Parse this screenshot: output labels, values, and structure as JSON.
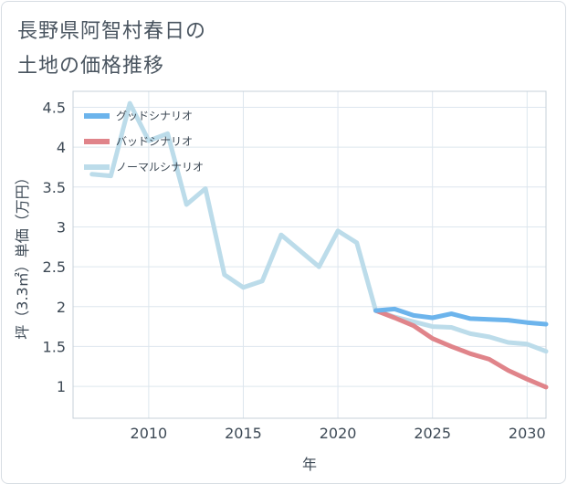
{
  "title_line1": "長野県阿智村春日の",
  "title_line2": "土地の価格推移",
  "chart_data": {
    "type": "line",
    "xlabel": "年",
    "ylabel": "坪（3.3㎡）単価（万円）",
    "xlim": [
      2006,
      2031
    ],
    "ylim": [
      0.6,
      4.7
    ],
    "xticks": [
      2010,
      2015,
      2020,
      2025,
      2030
    ],
    "yticks": [
      1,
      1.5,
      2,
      2.5,
      3,
      3.5,
      4,
      4.5
    ],
    "ytick_labels": [
      "1",
      "1.5",
      "2",
      "2.5",
      "3",
      "3.5",
      "4",
      "4.5"
    ],
    "grid": true,
    "legend_position": "top-left",
    "series": [
      {
        "name": "グッドシナリオ",
        "color": "#6cb4ec",
        "x": [
          2022,
          2023,
          2024,
          2025,
          2026,
          2027,
          2028,
          2029,
          2030,
          2031
        ],
        "y": [
          1.95,
          1.97,
          1.89,
          1.86,
          1.91,
          1.85,
          1.84,
          1.83,
          1.8,
          1.78
        ]
      },
      {
        "name": "バッドシナリオ",
        "color": "#e0848a",
        "x": [
          2022,
          2023,
          2024,
          2025,
          2026,
          2027,
          2028,
          2029,
          2030,
          2031
        ],
        "y": [
          1.95,
          1.86,
          1.76,
          1.6,
          1.5,
          1.41,
          1.34,
          1.2,
          1.09,
          0.99
        ]
      },
      {
        "name": "ノーマルシナリオ",
        "color": "#bcdcea",
        "x": [
          2007,
          2008,
          2009,
          2010,
          2011,
          2012,
          2013,
          2014,
          2015,
          2016,
          2017,
          2018,
          2019,
          2020,
          2021,
          2022,
          2023,
          2024,
          2025,
          2026,
          2027,
          2028,
          2029,
          2030,
          2031
        ],
        "y": [
          3.66,
          3.64,
          4.55,
          4.08,
          4.17,
          3.28,
          3.48,
          2.4,
          2.24,
          2.32,
          2.9,
          2.7,
          2.5,
          2.95,
          2.8,
          1.95,
          1.87,
          1.81,
          1.75,
          1.74,
          1.66,
          1.62,
          1.55,
          1.53,
          1.44
        ]
      }
    ]
  }
}
